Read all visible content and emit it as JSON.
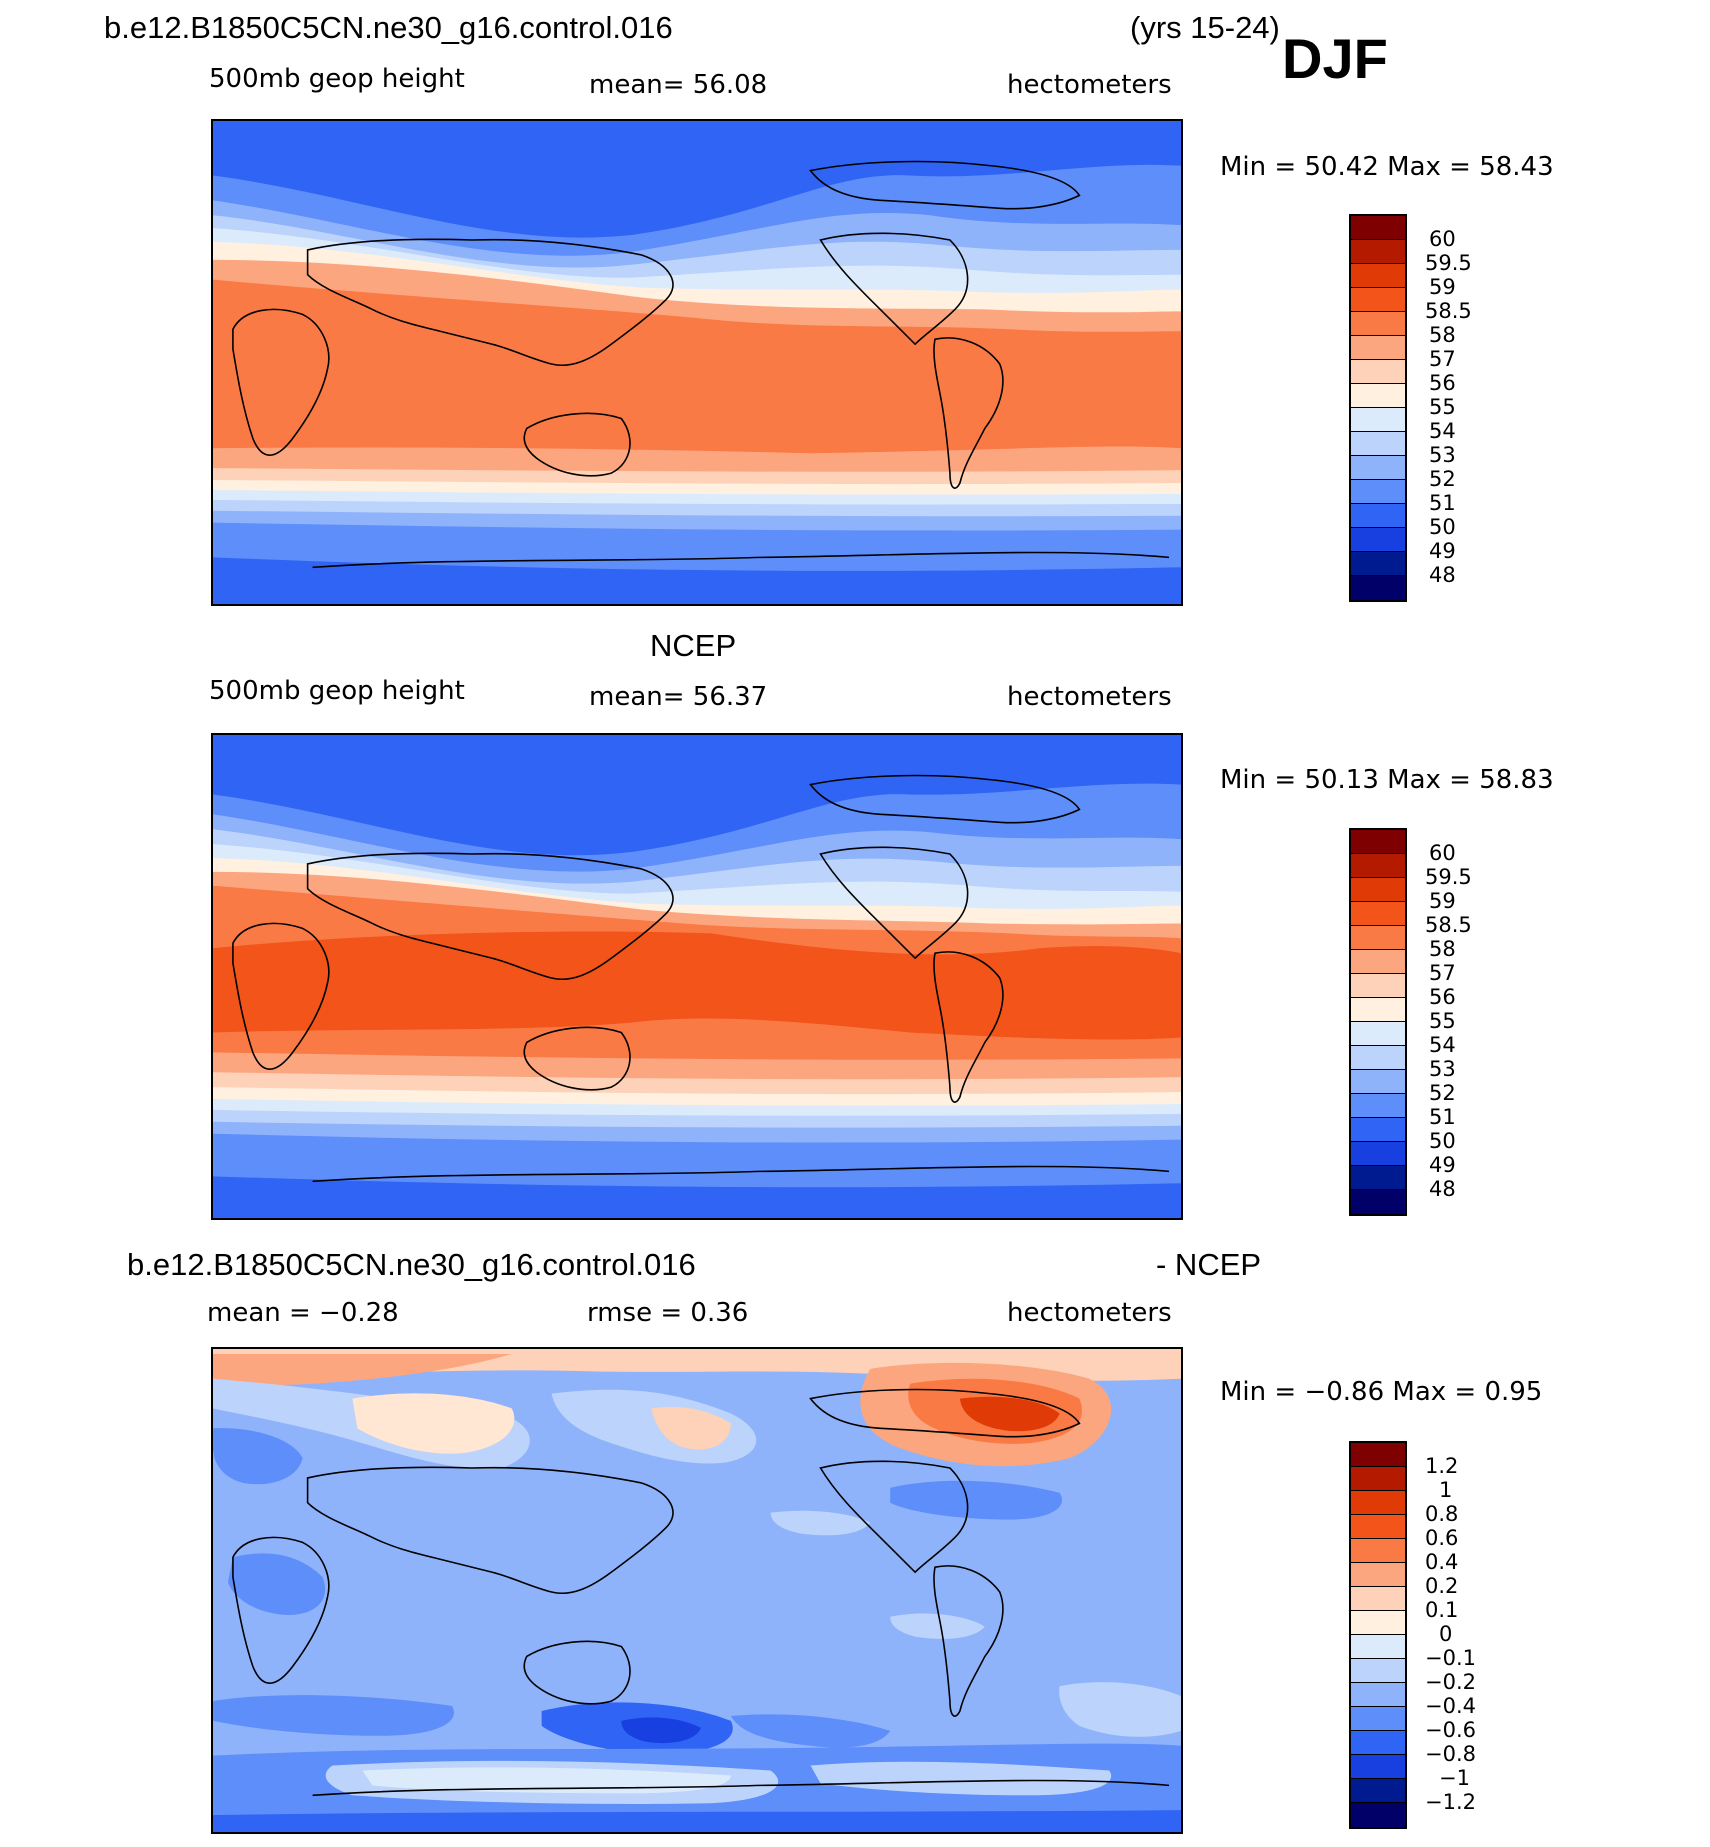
{
  "header": {
    "case_name": "b.e12.B1850C5CN.ne30_g16.control.016",
    "years": "(yrs 15-24)",
    "season": "DJF"
  },
  "panels": [
    {
      "id": "model",
      "title": "",
      "variable": "500mb geop height",
      "mean_text": "mean=   56.08",
      "units": "hectometers",
      "min_max": "Min =   50.42 Max =   58.43",
      "levels": [
        "60",
        "59.5",
        "59",
        "58.5",
        "58",
        "57",
        "56",
        "55",
        "54",
        "53",
        "52",
        "51",
        "50",
        "49",
        "48"
      ]
    },
    {
      "id": "ncep",
      "title": "NCEP",
      "variable": "500mb geop height",
      "mean_text": "mean=   56.37",
      "units": "hectometers",
      "min_max": "Min =   50.13 Max =   58.83",
      "levels": [
        "60",
        "59.5",
        "59",
        "58.5",
        "58",
        "57",
        "56",
        "55",
        "54",
        "53",
        "52",
        "51",
        "50",
        "49",
        "48"
      ]
    },
    {
      "id": "diff",
      "title_left": "b.e12.B1850C5CN.ne30_g16.control.016",
      "title_right": "- NCEP",
      "mean_text": "mean =   −0.28",
      "rmse_text": "rmse =     0.36",
      "units": "hectometers",
      "min_max": "Min =   −0.86 Max =     0.95",
      "levels": [
        "1.2",
        "1",
        "0.8",
        "0.6",
        "0.4",
        "0.2",
        "0.1",
        "0",
        "−0.1",
        "−0.2",
        "−0.4",
        "−0.6",
        "−0.8",
        "−1",
        "−1.2"
      ]
    }
  ],
  "colors": {
    "height_scale": [
      "#7f0000",
      "#b31a00",
      "#e03a06",
      "#f2541a",
      "#fa7a45",
      "#fca67f",
      "#fdd2b8",
      "#fff0e0",
      "#dcebfc",
      "#bcd4fb",
      "#8fb3fb",
      "#5e8ef9",
      "#2f64f4",
      "#1840e0",
      "#001a90",
      "#000068"
    ],
    "diff_scale": [
      "#7f0000",
      "#b31a00",
      "#e03a06",
      "#f2541a",
      "#fa7a45",
      "#fca67f",
      "#fdd2b8",
      "#fff0e0",
      "#dcebfc",
      "#bcd4fb",
      "#8fb3fb",
      "#5e8ef9",
      "#2f64f4",
      "#1840e0",
      "#001a90",
      "#000068"
    ],
    "coast": "#000000"
  }
}
